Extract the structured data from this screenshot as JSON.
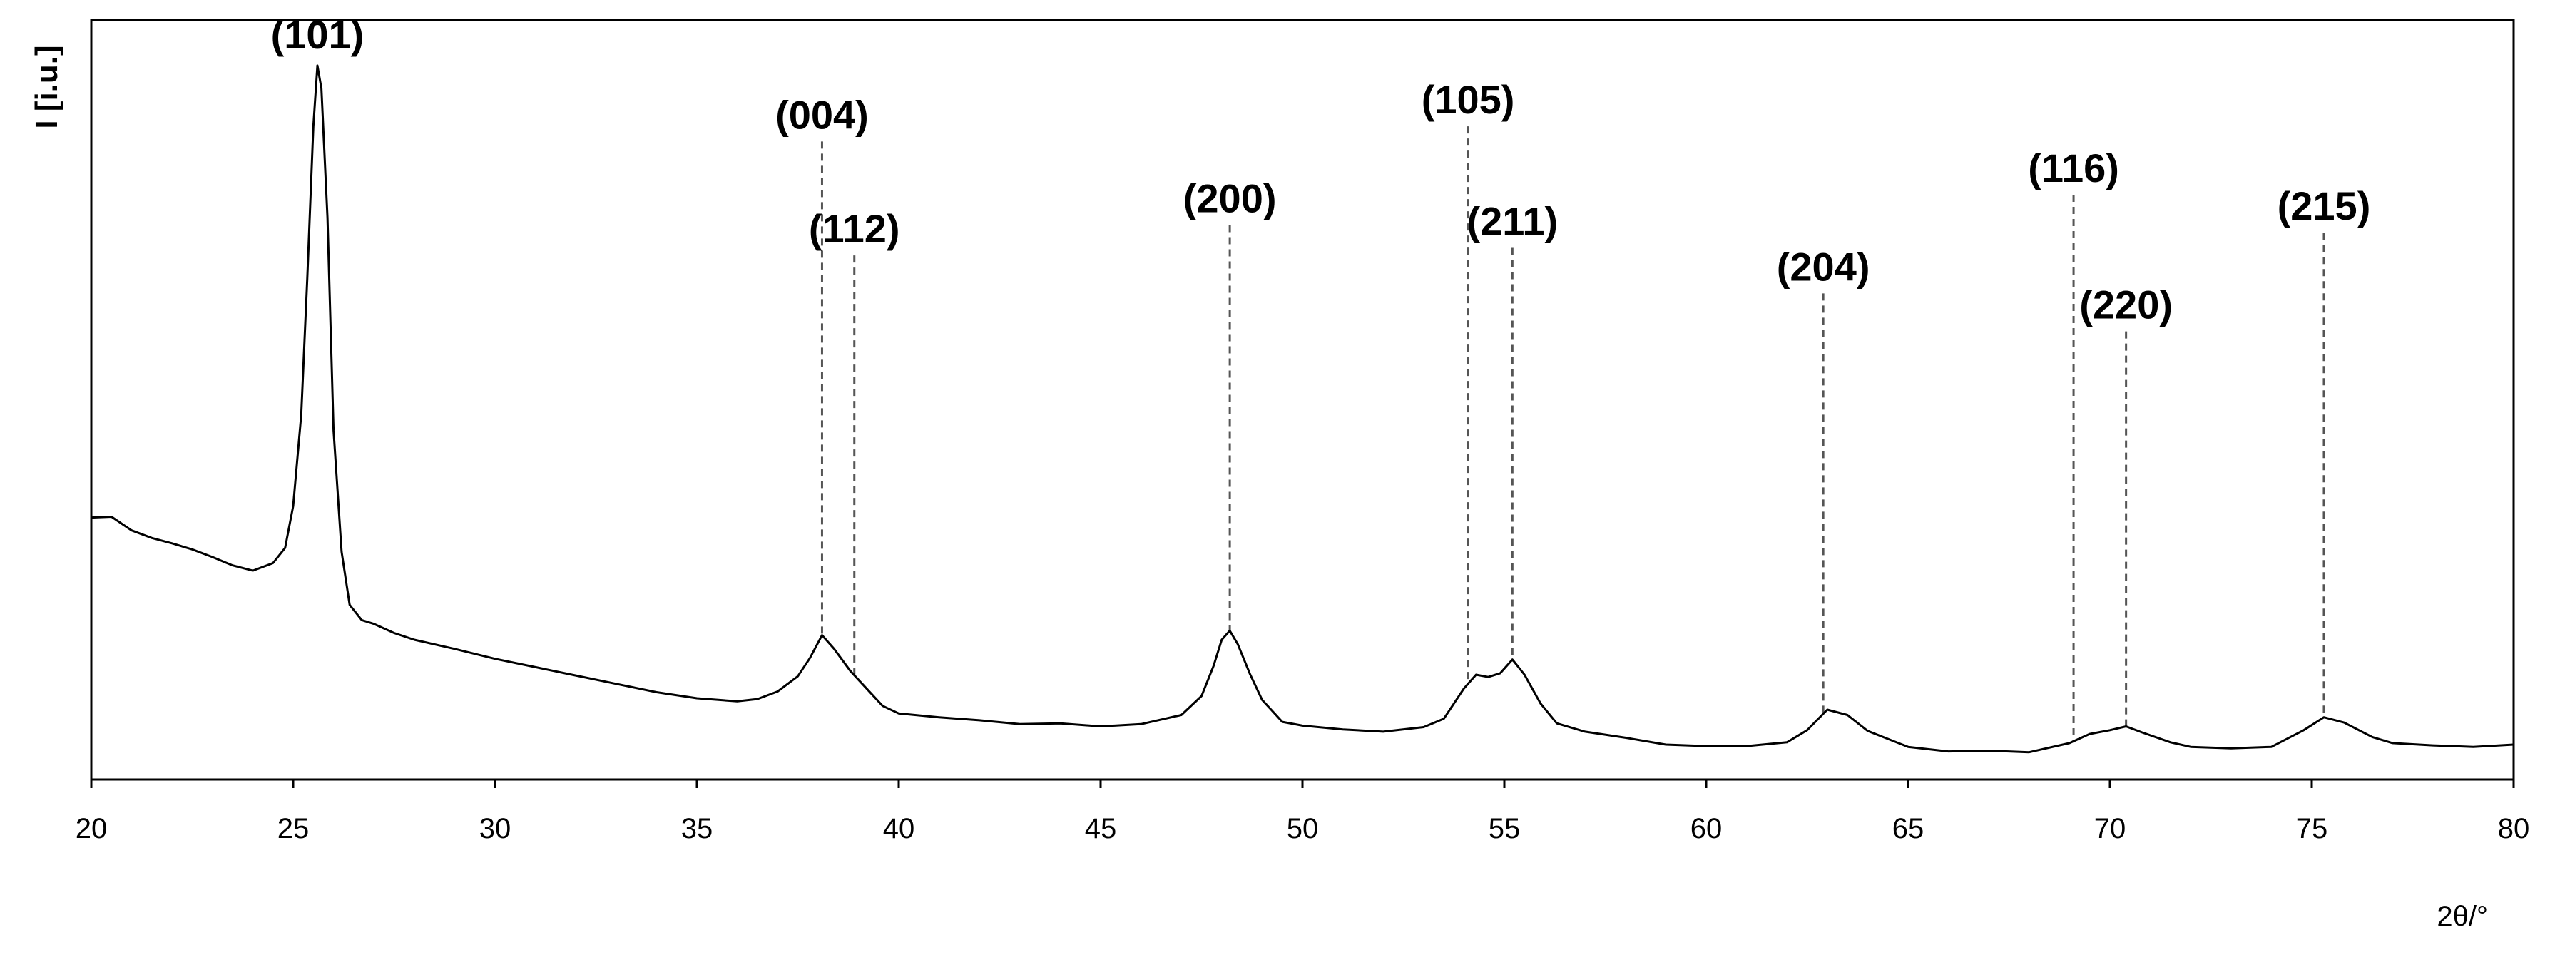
{
  "chart_data": {
    "type": "line",
    "title": "",
    "xlabel": "2θ/°",
    "ylabel": "I [i.u.]",
    "xlim": [
      20,
      80
    ],
    "ylim": [
      0,
      100
    ],
    "xticks": [
      20,
      25,
      30,
      35,
      40,
      45,
      50,
      55,
      60,
      65,
      70,
      75,
      80
    ],
    "x_tick_labels": [
      "20",
      "25",
      "30",
      "35",
      "40",
      "45",
      "50",
      "55",
      "60",
      "65",
      "70",
      "75",
      "80"
    ],
    "grid": false,
    "legend": "none",
    "line_color": "#000000",
    "marker_color": "#555555",
    "series": [
      {
        "x": [
          20,
          20.5,
          21,
          21.5,
          22,
          22.5,
          23,
          23.5,
          24,
          24.5,
          24.8,
          25.0,
          25.2,
          25.35,
          25.5,
          25.6,
          25.7,
          25.85,
          26.0,
          26.2,
          26.4,
          26.7,
          27,
          27.5,
          28,
          29,
          30,
          31,
          32,
          33,
          34,
          35,
          36,
          36.5,
          37,
          37.5,
          37.8,
          38.1,
          38.4,
          38.8,
          39.2,
          39.6,
          40,
          41,
          42,
          43,
          44,
          45,
          46,
          47,
          47.5,
          47.8,
          48.0,
          48.2,
          48.4,
          48.7,
          49,
          49.5,
          50,
          51,
          52,
          53,
          53.5,
          54.0,
          54.3,
          54.6,
          54.9,
          55.2,
          55.5,
          55.9,
          56.3,
          57,
          58,
          59,
          60,
          61,
          62,
          62.5,
          63,
          63.5,
          64,
          65,
          66,
          67,
          68,
          69,
          69.5,
          70,
          70.4,
          70.8,
          71.5,
          72,
          73,
          74,
          74.8,
          75.3,
          75.8,
          76.5,
          77,
          78,
          79,
          80
        ],
        "y": [
          34.5,
          34.6,
          32.8,
          31.8,
          31.1,
          30.3,
          29.3,
          28.2,
          27.5,
          28.5,
          30.5,
          36,
          48,
          66,
          86,
          94,
          91,
          74,
          46,
          30,
          23,
          21,
          20.5,
          19.3,
          18.4,
          17.2,
          15.9,
          14.8,
          13.7,
          12.6,
          11.5,
          10.7,
          10.3,
          10.6,
          11.6,
          13.6,
          16.0,
          19.0,
          17.2,
          14.3,
          12.0,
          9.7,
          8.7,
          8.2,
          7.8,
          7.3,
          7.4,
          7.0,
          7.3,
          8.5,
          11.0,
          15.0,
          18.4,
          19.6,
          17.8,
          13.9,
          10.5,
          7.6,
          7.1,
          6.6,
          6.3,
          6.9,
          8.0,
          12.0,
          13.8,
          13.5,
          14.0,
          15.8,
          13.8,
          10.0,
          7.4,
          6.3,
          5.5,
          4.6,
          4.4,
          4.4,
          4.9,
          6.5,
          9.2,
          8.5,
          6.4,
          4.3,
          3.7,
          3.8,
          3.6,
          4.8,
          6.0,
          6.5,
          7.0,
          6.2,
          4.9,
          4.3,
          4.1,
          4.3,
          6.5,
          8.2,
          7.5,
          5.6,
          4.8,
          4.5,
          4.3,
          4.6
        ]
      }
    ],
    "annotations": [
      {
        "label": "(101)",
        "x": 25.6,
        "y_top": null
      },
      {
        "label": "(004)",
        "x": 38.1,
        "y_top": 84
      },
      {
        "label": "(112)",
        "x": 38.9,
        "y_top": 69
      },
      {
        "label": "(200)",
        "x": 48.2,
        "y_top": 73
      },
      {
        "label": "(105)",
        "x": 54.1,
        "y_top": 86
      },
      {
        "label": "(211)",
        "x": 55.2,
        "y_top": 70
      },
      {
        "label": "(204)",
        "x": 62.9,
        "y_top": 64
      },
      {
        "label": "(116)",
        "x": 69.1,
        "y_top": 77
      },
      {
        "label": "(220)",
        "x": 70.4,
        "y_top": 59
      },
      {
        "label": "(215)",
        "x": 75.3,
        "y_top": 72
      }
    ]
  }
}
